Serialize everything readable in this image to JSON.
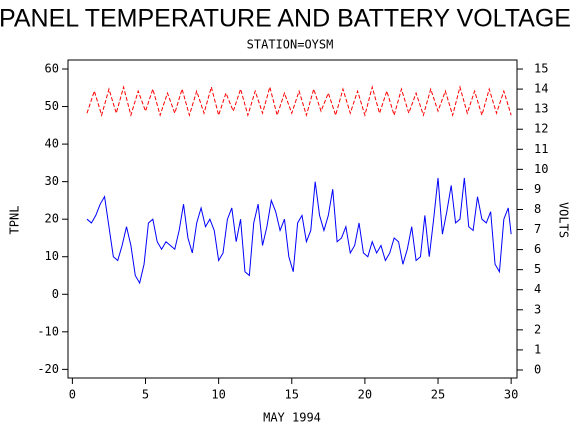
{
  "chart_data": {
    "type": "line",
    "title": "PANEL TEMPERATURE AND BATTERY VOLTAGE",
    "subtitle": "STATION=OYSM",
    "x_label": "MAY 1994",
    "y_label": "TPNL",
    "y2_label": "VOLTS",
    "xlim": [
      -0.3,
      30.4
    ],
    "xticks": [
      0,
      5,
      10,
      15,
      20,
      25,
      30
    ],
    "ylim": [
      -22.3,
      62.4
    ],
    "yticks": [
      -20,
      -10,
      0,
      10,
      20,
      30,
      40,
      50,
      60
    ],
    "y2lim": [
      -0.4,
      15.45
    ],
    "y2ticks": [
      0,
      1,
      2,
      3,
      4,
      5,
      6,
      7,
      8,
      9,
      10,
      11,
      12,
      13,
      14,
      15
    ],
    "series": [
      {
        "color": "#0000ff",
        "axis": "y",
        "x": [
          1,
          1.3,
          1.6,
          1.9,
          2.2,
          2.5,
          2.8,
          3.1,
          3.4,
          3.7,
          4,
          4.3,
          4.6,
          4.9,
          5.2,
          5.5,
          5.8,
          6.1,
          6.4,
          6.7,
          7,
          7.3,
          7.6,
          7.9,
          8.2,
          8.5,
          8.8,
          9.1,
          9.4,
          9.7,
          10,
          10.3,
          10.6,
          10.9,
          11.2,
          11.5,
          11.8,
          12.1,
          12.4,
          12.7,
          13,
          13.3,
          13.6,
          13.9,
          14.2,
          14.5,
          14.8,
          15.1,
          15.4,
          15.7,
          16,
          16.3,
          16.6,
          16.9,
          17.2,
          17.5,
          17.8,
          18.1,
          18.4,
          18.7,
          19,
          19.3,
          19.6,
          19.9,
          20.2,
          20.5,
          20.8,
          21.1,
          21.4,
          21.7,
          22,
          22.3,
          22.6,
          22.9,
          23.2,
          23.5,
          23.8,
          24.1,
          24.4,
          24.7,
          25,
          25.3,
          25.6,
          25.9,
          26.2,
          26.5,
          26.8,
          27.1,
          27.4,
          27.7,
          28,
          28.3,
          28.6,
          28.9,
          29.2,
          29.5,
          29.8,
          30
        ],
        "values": [
          20,
          19,
          21,
          24,
          26,
          18,
          10,
          9,
          13,
          18,
          13,
          5,
          3,
          8,
          19,
          20,
          14,
          12,
          14,
          13,
          12,
          17,
          24,
          15,
          11,
          19,
          23,
          18,
          20,
          17,
          9,
          11,
          20,
          23,
          14,
          20,
          6,
          5,
          19,
          24,
          13,
          18,
          25,
          22,
          17,
          20,
          10,
          6,
          19,
          21,
          14,
          17,
          30,
          21,
          17,
          21,
          28,
          14,
          15,
          18,
          11,
          13,
          19,
          11,
          10,
          14,
          11,
          13,
          9,
          11,
          15,
          14,
          8,
          12,
          18,
          9,
          10,
          21,
          10,
          20,
          31,
          16,
          22,
          29,
          19,
          20,
          31,
          18,
          17,
          26,
          20,
          19,
          22,
          8,
          6,
          20,
          23,
          16
        ]
      },
      {
        "color": "#ff0000",
        "axis": "y2",
        "dashed": true,
        "x": [
          1,
          1.5,
          2,
          2.5,
          3,
          3.5,
          4,
          4.5,
          5,
          5.5,
          6,
          6.5,
          7,
          7.5,
          8,
          8.5,
          9,
          9.5,
          10,
          10.5,
          11,
          11.5,
          12,
          12.5,
          13,
          13.5,
          14,
          14.5,
          15,
          15.5,
          16,
          16.5,
          17,
          17.5,
          18,
          18.5,
          19,
          19.5,
          20,
          20.5,
          21,
          21.5,
          22,
          22.5,
          23,
          23.5,
          24,
          24.5,
          25,
          25.5,
          26,
          26.5,
          27,
          27.5,
          28,
          28.5,
          29,
          29.5,
          30
        ],
        "values": [
          12.8,
          13.9,
          12.7,
          14.0,
          12.8,
          14.1,
          12.7,
          13.9,
          12.9,
          14.0,
          12.7,
          13.8,
          12.8,
          14.0,
          12.7,
          13.9,
          12.8,
          14.1,
          12.7,
          13.8,
          12.9,
          14.0,
          12.7,
          13.9,
          12.8,
          14.1,
          12.7,
          13.8,
          12.8,
          13.9,
          12.7,
          14.0,
          12.9,
          13.8,
          12.7,
          14.0,
          12.8,
          13.9,
          12.7,
          14.1,
          12.8,
          13.9,
          12.7,
          14.0,
          12.8,
          13.8,
          12.7,
          14.0,
          12.9,
          13.9,
          12.7,
          14.1,
          12.8,
          13.9,
          12.7,
          14.0,
          12.8,
          13.9,
          12.7
        ]
      }
    ]
  }
}
